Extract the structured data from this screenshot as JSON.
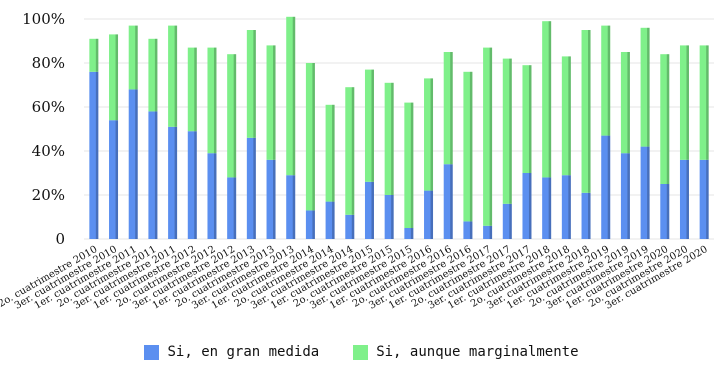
{
  "chart_data": {
    "type": "bar",
    "stacked": true,
    "categories": [
      "2o. cuatrimestre 2010",
      "3er. cuatrimestre 2010",
      "1er. cuatrimestre 2011",
      "2o. cuatrimestre 2011",
      "3er. cuatrimestre 2011",
      "1er. cuatrimestre 2012",
      "2o. cuatrimestre 2012",
      "3er. cuatrimestre 2012",
      "1er. cuatrimestre 2013",
      "2o. cuatrimestre 2013",
      "3er. cuatrimestre 2013",
      "1er. cuatrimestre 2014",
      "2o. cuatrimestre 2014",
      "3er. cuatrimestre 2014",
      "1er. cuatrimestre 2015",
      "2o. cuatrimestre 2015",
      "3er. cuatrimestre 2015",
      "1er. cuatrimestre 2016",
      "2o. cuatrimestre 2016",
      "3er. cuatrimestre 2016",
      "1er. cuatrimestre 2017",
      "2o. cuatrimestre 2017",
      "3er. cuatrimestre 2017",
      "1er. cuatrimestre 2018",
      "2o. cuatrimestre 2018",
      "3er. cuatrimestre 2018",
      "1er. cuatrimestre 2019",
      "2o. cuatrimestre 2019",
      "3er. cuatrimestre 2019",
      "1er. cuatrimestre 2020",
      "2o. cuatrimestre 2020",
      "3er. cuatrimestre 2020"
    ],
    "series": [
      {
        "name": "Si, en gran medida",
        "color": "#5b8ff0",
        "values": [
          76,
          54,
          68,
          58,
          51,
          49,
          39,
          28,
          46,
          36,
          29,
          13,
          17,
          11,
          26,
          20,
          5,
          22,
          34,
          8,
          6,
          16,
          30,
          28,
          29,
          21,
          47,
          39,
          42,
          25,
          36,
          36
        ]
      },
      {
        "name": "Si, aunque marginalmente",
        "color": "#7ff08a",
        "values": [
          15,
          39,
          29,
          33,
          46,
          38,
          48,
          56,
          49,
          52,
          72,
          67,
          44,
          58,
          51,
          51,
          57,
          51,
          51,
          68,
          81,
          66,
          49,
          71,
          54,
          74,
          50,
          46,
          54,
          59,
          52,
          52
        ]
      }
    ],
    "y_ticks": [
      "0",
      "20%",
      "40%",
      "60%",
      "80%",
      "100%"
    ],
    "ylim": [
      0,
      100
    ],
    "grid": true,
    "legend_position": "bottom"
  }
}
